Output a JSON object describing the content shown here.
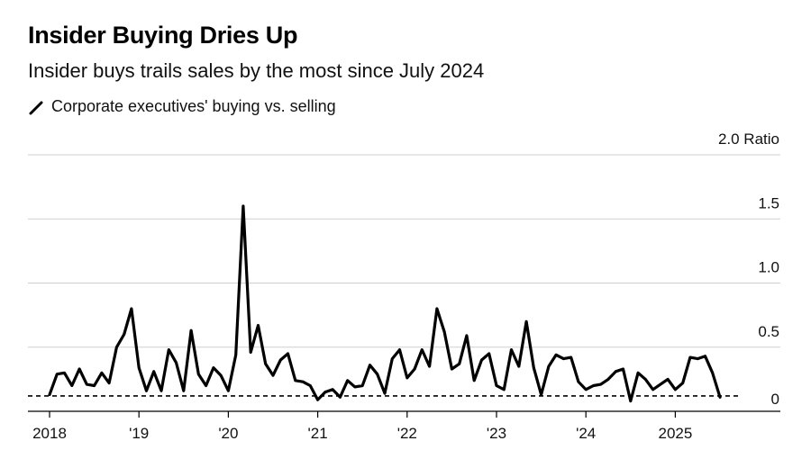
{
  "chart_data": {
    "type": "line",
    "title": "Insider Buying Dries Up",
    "subtitle": "Insider buys trails sales by the most since July 2024",
    "legend": [
      {
        "name": "Corporate executives' buying vs. selling",
        "color": "#000000"
      }
    ],
    "y_unit_label": "Ratio",
    "ylim": [
      0,
      2.0
    ],
    "y_ticks": [
      0,
      0.5,
      1.0,
      1.5,
      2.0
    ],
    "y_tick_labels": [
      "0",
      "0.5",
      "1.0",
      "1.5",
      "2.0 Ratio"
    ],
    "x_ticks": [
      {
        "label": "2018",
        "year": 2018
      },
      {
        "label": "'19",
        "year": 2019
      },
      {
        "label": "'20",
        "year": 2020
      },
      {
        "label": "'21",
        "year": 2021
      },
      {
        "label": "'22",
        "year": 2022
      },
      {
        "label": "'23",
        "year": 2023
      },
      {
        "label": "'24",
        "year": 2024
      },
      {
        "label": "2025",
        "year": 2025
      }
    ],
    "xlim": [
      2017.75,
      2026.05
    ],
    "reference_line": {
      "value": 0.12,
      "style": "dashed"
    },
    "series": [
      {
        "name": "Corporate executives' buying vs. selling",
        "start": [
          2018,
          1
        ],
        "values": [
          0.13,
          0.29,
          0.3,
          0.2,
          0.33,
          0.21,
          0.2,
          0.3,
          0.22,
          0.5,
          0.6,
          0.8,
          0.34,
          0.16,
          0.31,
          0.16,
          0.48,
          0.38,
          0.16,
          0.63,
          0.29,
          0.2,
          0.34,
          0.28,
          0.16,
          0.44,
          1.6,
          0.46,
          0.67,
          0.37,
          0.28,
          0.4,
          0.45,
          0.24,
          0.23,
          0.2,
          0.09,
          0.15,
          0.17,
          0.11,
          0.24,
          0.19,
          0.2,
          0.36,
          0.29,
          0.14,
          0.41,
          0.48,
          0.26,
          0.33,
          0.48,
          0.35,
          0.8,
          0.62,
          0.33,
          0.37,
          0.59,
          0.24,
          0.4,
          0.45,
          0.2,
          0.17,
          0.48,
          0.35,
          0.7,
          0.34,
          0.13,
          0.35,
          0.44,
          0.41,
          0.42,
          0.23,
          0.17,
          0.2,
          0.21,
          0.25,
          0.31,
          0.33,
          0.08,
          0.3,
          0.25,
          0.17,
          0.21,
          0.25,
          0.17,
          0.22,
          0.42,
          0.41,
          0.43,
          0.3,
          0.11
        ]
      }
    ]
  }
}
